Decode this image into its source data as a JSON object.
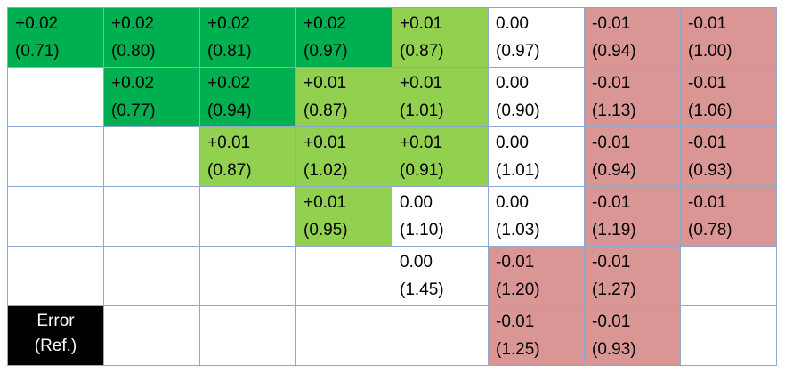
{
  "chart_data": {
    "type": "table",
    "colors": {
      "dark_green": "#00b050",
      "light_green": "#92d050",
      "neutral": "#ffffff",
      "red": "#da9694",
      "legend_bg": "#000000",
      "legend_text": "#ffffff",
      "grid_line": "#8ea9cc"
    },
    "legend": {
      "line1": "Error",
      "line2": "(Ref.)"
    },
    "rows": [
      [
        {
          "error": "+0.02",
          "ref": "(0.71)",
          "color": "dark_green"
        },
        {
          "error": "+0.02",
          "ref": "(0.80)",
          "color": "dark_green"
        },
        {
          "error": "+0.02",
          "ref": "(0.81)",
          "color": "dark_green"
        },
        {
          "error": "+0.02",
          "ref": "(0.97)",
          "color": "dark_green"
        },
        {
          "error": "+0.01",
          "ref": "(0.87)",
          "color": "light_green"
        },
        {
          "error": "0.00",
          "ref": "(0.97)",
          "color": "neutral"
        },
        {
          "error": "-0.01",
          "ref": "(0.94)",
          "color": "red"
        },
        {
          "error": "-0.01",
          "ref": "(1.00)",
          "color": "red"
        }
      ],
      [
        null,
        {
          "error": "+0.02",
          "ref": "(0.77)",
          "color": "dark_green"
        },
        {
          "error": "+0.02",
          "ref": "(0.94)",
          "color": "dark_green"
        },
        {
          "error": "+0.01",
          "ref": "(0.87)",
          "color": "light_green"
        },
        {
          "error": "+0.01",
          "ref": "(1.01)",
          "color": "light_green"
        },
        {
          "error": "0.00",
          "ref": "(0.90)",
          "color": "neutral"
        },
        {
          "error": "-0.01",
          "ref": "(1.13)",
          "color": "red"
        },
        {
          "error": "-0.01",
          "ref": "(1.06)",
          "color": "red"
        }
      ],
      [
        null,
        null,
        {
          "error": "+0.01",
          "ref": "(0.87)",
          "color": "light_green"
        },
        {
          "error": "+0.01",
          "ref": "(1.02)",
          "color": "light_green"
        },
        {
          "error": "+0.01",
          "ref": "(0.91)",
          "color": "light_green"
        },
        {
          "error": "0.00",
          "ref": "(1.01)",
          "color": "neutral"
        },
        {
          "error": "-0.01",
          "ref": "(0.94)",
          "color": "red"
        },
        {
          "error": "-0.01",
          "ref": "(0.93)",
          "color": "red"
        }
      ],
      [
        null,
        null,
        null,
        {
          "error": "+0.01",
          "ref": "(0.95)",
          "color": "light_green"
        },
        {
          "error": "0.00",
          "ref": "(1.10)",
          "color": "neutral"
        },
        {
          "error": "0.00",
          "ref": "(1.03)",
          "color": "neutral"
        },
        {
          "error": "-0.01",
          "ref": "(1.19)",
          "color": "red"
        },
        {
          "error": "-0.01",
          "ref": "(0.78)",
          "color": "red"
        }
      ],
      [
        null,
        null,
        null,
        null,
        {
          "error": "0.00",
          "ref": "(1.45)",
          "color": "neutral"
        },
        {
          "error": "-0.01",
          "ref": "(1.20)",
          "color": "red"
        },
        {
          "error": "-0.01",
          "ref": "(1.27)",
          "color": "red"
        },
        null
      ],
      [
        "legend",
        null,
        null,
        null,
        null,
        {
          "error": "-0.01",
          "ref": "(1.25)",
          "color": "red"
        },
        {
          "error": "-0.01",
          "ref": "(0.93)",
          "color": "red"
        },
        null
      ]
    ]
  }
}
